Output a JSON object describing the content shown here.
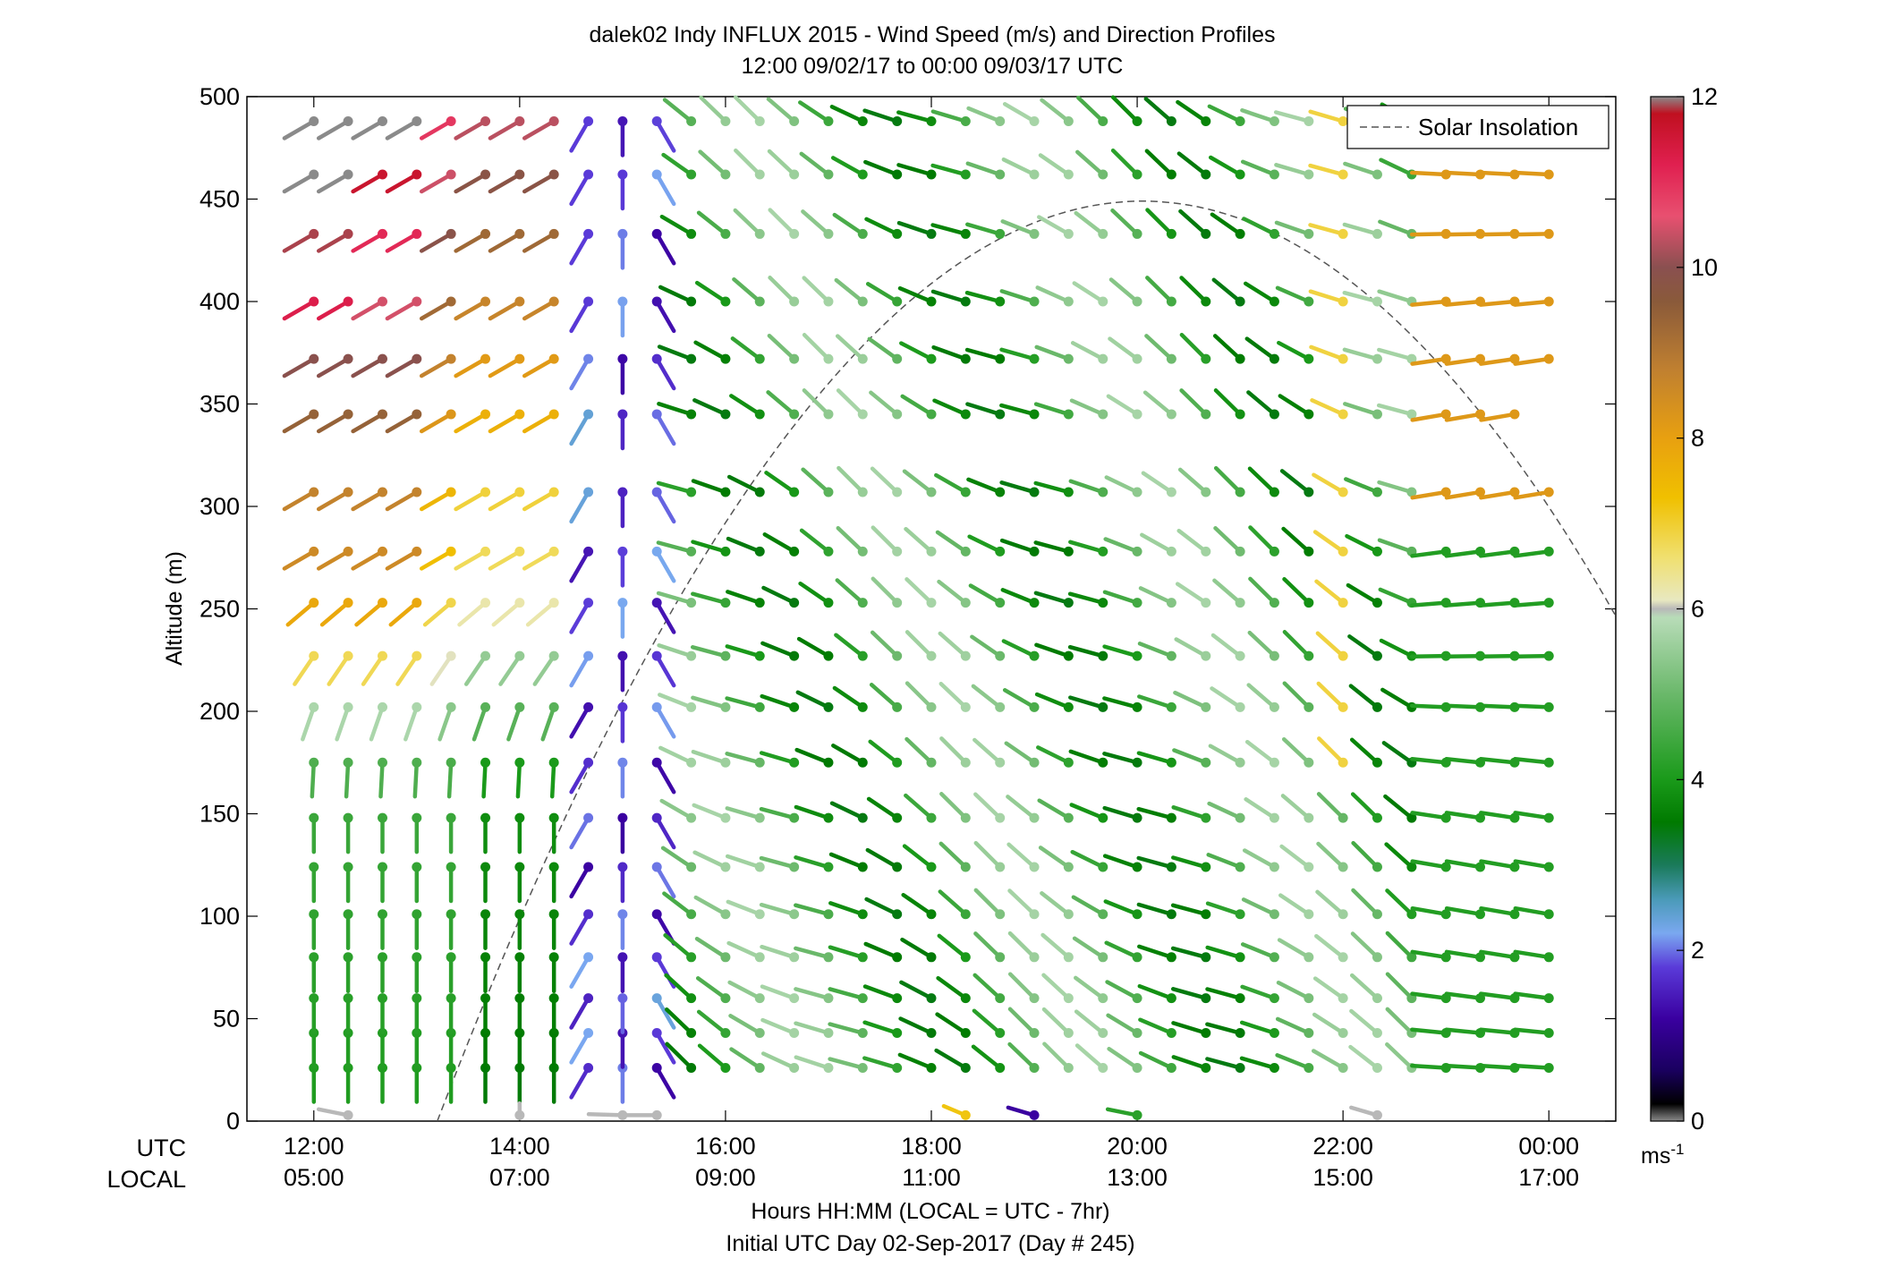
{
  "chart_data": {
    "type": "wind-barb profile",
    "title": "dalek02 Indy INFLUX 2015 - Wind Speed (m/s) and Direction Profiles",
    "subtitle": "12:00 09/02/17 to 00:00 09/03/17  UTC",
    "xlabel": "Hours HH:MM  (LOCAL = UTC - 7hr)",
    "xlabel2": "Initial UTC Day 02-Sep-2017 (Day # 245)",
    "ylabel": "Altitude (m)",
    "row_label_utc": "UTC",
    "row_label_local": "LOCAL",
    "x_range_hours": [
      11.35,
      24.65
    ],
    "ylim": [
      0,
      500
    ],
    "x_ticks_utc": [
      {
        "hour": 12,
        "label": "12:00"
      },
      {
        "hour": 14,
        "label": "14:00"
      },
      {
        "hour": 16,
        "label": "16:00"
      },
      {
        "hour": 18,
        "label": "18:00"
      },
      {
        "hour": 20,
        "label": "20:00"
      },
      {
        "hour": 22,
        "label": "22:00"
      },
      {
        "hour": 24,
        "label": "00:00"
      }
    ],
    "x_ticks_local": [
      "05:00",
      "07:00",
      "09:00",
      "11:00",
      "13:00",
      "15:00",
      "17:00"
    ],
    "y_ticks": [
      {
        "value": 0,
        "label": "0"
      },
      {
        "value": 50,
        "label": "50"
      },
      {
        "value": 100,
        "label": "100"
      },
      {
        "value": 150,
        "label": "150"
      },
      {
        "value": 200,
        "label": "200"
      },
      {
        "value": 250,
        "label": "250"
      },
      {
        "value": 300,
        "label": "300"
      },
      {
        "value": 350,
        "label": "350"
      },
      {
        "value": 400,
        "label": "400"
      },
      {
        "value": 450,
        "label": "450"
      },
      {
        "value": 500,
        "label": "500"
      }
    ],
    "colorbar": {
      "min": 0,
      "max": 12,
      "ticks": [
        {
          "value": 0,
          "label": "0"
        },
        {
          "value": 2,
          "label": "2"
        },
        {
          "value": 4,
          "label": "4"
        },
        {
          "value": 6,
          "label": "6"
        },
        {
          "value": 8,
          "label": "8"
        },
        {
          "value": 10,
          "label": "10"
        },
        {
          "value": 12,
          "label": "12"
        }
      ],
      "unit_label": "ms",
      "unit_exp": "-1",
      "stops": [
        {
          "v": 0.0,
          "c": "#8a8a8a"
        },
        {
          "v": 0.2,
          "c": "#000000"
        },
        {
          "v": 0.6,
          "c": "#1a0060"
        },
        {
          "v": 1.2,
          "c": "#3a00a0"
        },
        {
          "v": 1.8,
          "c": "#5a3ad8"
        },
        {
          "v": 2.2,
          "c": "#7aa8f0"
        },
        {
          "v": 2.6,
          "c": "#4a9ab8"
        },
        {
          "v": 3.0,
          "c": "#1a7a5a"
        },
        {
          "v": 3.5,
          "c": "#007a00"
        },
        {
          "v": 4.0,
          "c": "#1a9a1a"
        },
        {
          "v": 5.0,
          "c": "#6ab86a"
        },
        {
          "v": 5.9,
          "c": "#b8dcb8"
        },
        {
          "v": 6.0,
          "c": "#b8b8b8"
        },
        {
          "v": 6.1,
          "c": "#e8e8c0"
        },
        {
          "v": 6.6,
          "c": "#f0e070"
        },
        {
          "v": 7.3,
          "c": "#f0c000"
        },
        {
          "v": 8.0,
          "c": "#e8a010"
        },
        {
          "v": 8.8,
          "c": "#c08030"
        },
        {
          "v": 9.6,
          "c": "#8a5a3a"
        },
        {
          "v": 10.0,
          "c": "#8a5050"
        },
        {
          "v": 10.6,
          "c": "#e85070"
        },
        {
          "v": 11.2,
          "c": "#e02050"
        },
        {
          "v": 11.8,
          "c": "#c01020"
        },
        {
          "v": 12.0,
          "c": "#8a8a8a"
        }
      ]
    },
    "legend": {
      "label": "Solar Insolation",
      "placement": "top-right",
      "style": "dashed"
    },
    "solar_insolation_curve": {
      "rise_hour": 13.2,
      "peak_hour": 20.05,
      "peak_altitude": 449,
      "set_hour": 26.45
    },
    "barb_times_hours": [
      12.0,
      12.333,
      12.667,
      13.0,
      13.333,
      13.667,
      14.0,
      14.333,
      14.667,
      15.0,
      15.333,
      15.667,
      16.0,
      16.333,
      16.667,
      17.0,
      17.333,
      17.667,
      18.0,
      18.333,
      18.667,
      19.0,
      19.333,
      19.667,
      20.0,
      20.333,
      20.667,
      21.0,
      21.333,
      21.667,
      22.0,
      22.333,
      22.667,
      23.0,
      23.333,
      23.667,
      24.0
    ],
    "barb_altitudes_m": [
      26,
      43,
      60,
      80,
      101,
      124,
      148,
      175,
      202,
      227,
      253,
      278,
      307,
      345,
      372,
      400,
      433,
      462,
      488
    ],
    "wind_summary": [
      {
        "period_utc": "12:00-14:00",
        "altitude_m": "26-180",
        "direction_from_deg": 180,
        "speed_ms": "3.7-5.6"
      },
      {
        "period_utc": "12:00-14:30",
        "altitude_m": "200-500",
        "direction_from_deg": "225-250",
        "speed_ms": "6.6-10.8"
      },
      {
        "period_utc": "14:30-15:30",
        "altitude_m": "26-500",
        "direction_from_deg": "150-210",
        "speed_ms": "1.0-2.6"
      },
      {
        "period_utc": "15:30-23:00",
        "altitude_m": "26-500",
        "direction_from_deg": "290-320",
        "speed_ms": "3.3-5.9"
      },
      {
        "period_utc": "23:00-00:00",
        "altitude_m": "26-500",
        "direction_from_deg": "255-280",
        "speed_ms": "3.5-9.5"
      }
    ],
    "surface_points": [
      {
        "hour": 12.333,
        "altitude_m": 2,
        "speed_ms": 6.0,
        "direction_from_deg": 300
      },
      {
        "hour": 14.0,
        "altitude_m": 2,
        "speed_ms": 6.0,
        "direction_from_deg": 0
      },
      {
        "hour": 15.0,
        "altitude_m": 2,
        "speed_ms": 6.0,
        "direction_from_deg": 275
      },
      {
        "hour": 15.333,
        "altitude_m": 2,
        "speed_ms": 6.0,
        "direction_from_deg": 270
      },
      {
        "hour": 18.333,
        "altitude_m": 2,
        "speed_ms": 7.2,
        "direction_from_deg": 320
      },
      {
        "hour": 19.0,
        "altitude_m": 2,
        "speed_ms": 1.2,
        "direction_from_deg": 310
      },
      {
        "hour": 20.0,
        "altitude_m": 2,
        "speed_ms": 4.2,
        "direction_from_deg": 300
      },
      {
        "hour": 22.333,
        "altitude_m": 2,
        "speed_ms": 6.0,
        "direction_from_deg": 310
      }
    ]
  }
}
